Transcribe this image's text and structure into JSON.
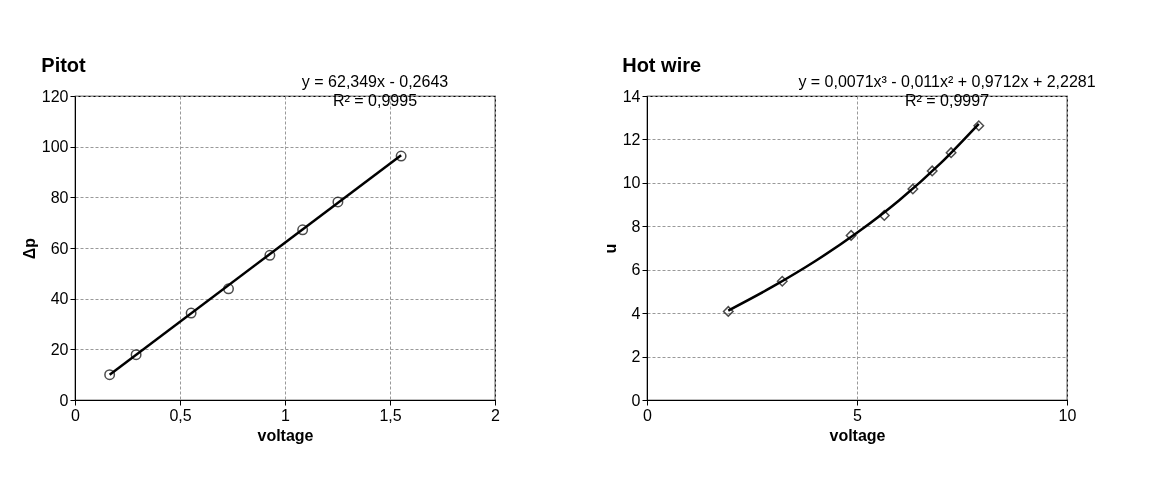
{
  "chart_data": [
    {
      "type": "scatter",
      "title": "Pitot",
      "xlabel": "voltage",
      "ylabel": "Δp",
      "annotations": [
        "y = 62,349x - 0,2643",
        "R² = 0,9995"
      ],
      "xlim": [
        0,
        2
      ],
      "xticks": [
        0,
        {
          "value": 0.5,
          "label": "0,5"
        },
        1,
        {
          "value": 1.5,
          "label": "1,5"
        },
        2
      ],
      "ylim": [
        0,
        120
      ],
      "yticks": [
        0,
        20,
        40,
        60,
        80,
        100,
        120
      ],
      "grid": true,
      "series": [
        {
          "color": "#000000",
          "marker": "circle",
          "x": [
            0.165,
            0.291,
            0.553,
            0.731,
            0.928,
            1.084,
            1.252,
            1.553
          ],
          "values": [
            10.0,
            17.9,
            34.3,
            43.9,
            57.1,
            67.2,
            78.2,
            96.3
          ]
        },
        {
          "type": "line",
          "color": "#000000",
          "x": [
            0.165,
            1.553
          ],
          "values": [
            10.0,
            96.6
          ]
        }
      ]
    },
    {
      "type": "scatter",
      "title": "Hot wire",
      "xlabel": "voltage",
      "ylabel": "u",
      "annotations": [
        "y = 0,0071x³ - 0,011x² + 0,9712x + 2,2281",
        "R² = 0,9997"
      ],
      "xlim": [
        0,
        10
      ],
      "xticks": [
        0,
        5,
        10
      ],
      "ylim": [
        0,
        14
      ],
      "yticks": [
        0,
        2,
        4,
        6,
        8,
        10,
        12,
        14
      ],
      "grid": true,
      "series": [
        {
          "color": "#000000",
          "marker": "diamond",
          "x": [
            1.935,
            3.22,
            4.86,
            5.65,
            6.33,
            6.79,
            7.24,
            7.9
          ],
          "values": [
            4.08,
            5.47,
            7.58,
            8.5,
            9.72,
            10.55,
            11.39,
            12.63
          ]
        },
        {
          "type": "line",
          "color": "#000000",
          "x": [
            1.935,
            3,
            4,
            5,
            6,
            7,
            7.9
          ],
          "values": [
            4.12,
            5.23,
            6.39,
            7.7,
            9.19,
            10.92,
            12.72
          ]
        }
      ]
    }
  ]
}
